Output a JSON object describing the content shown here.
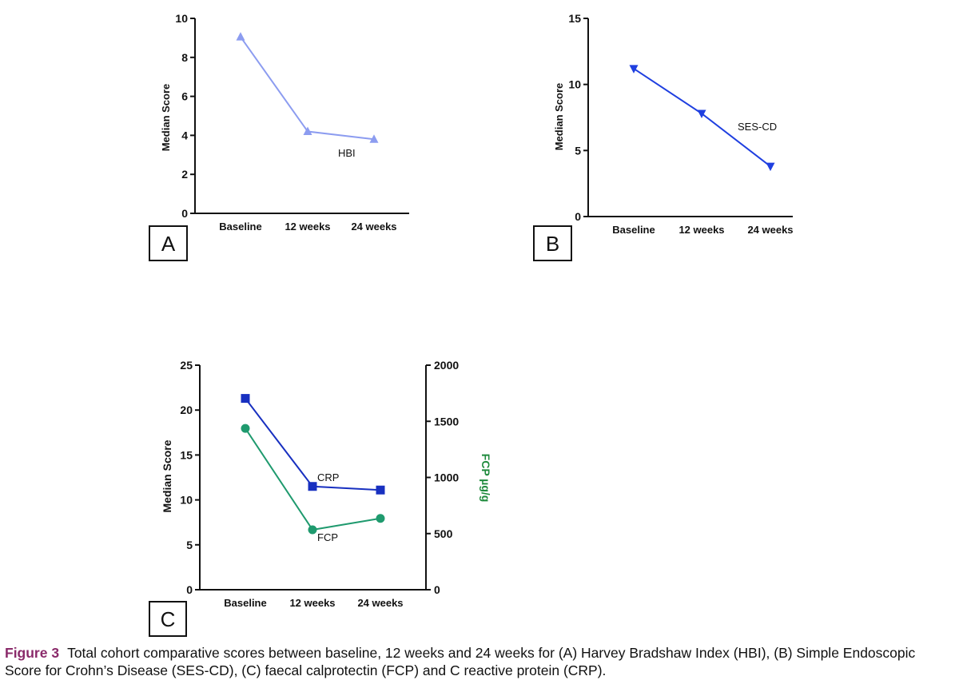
{
  "panel_labels": {
    "a": "A",
    "b": "B",
    "c": "C"
  },
  "chart_data": [
    {
      "type": "line",
      "panel": "A",
      "ylabel": "Median Score",
      "categories": [
        "Baseline",
        "12 weeks",
        "24 weeks"
      ],
      "ylim": [
        0,
        10
      ],
      "yticks": [
        0,
        2,
        4,
        6,
        8,
        10
      ],
      "series": [
        {
          "name": "HBI",
          "values": [
            9.05,
            4.2,
            3.8
          ],
          "color": "#8c9cf0",
          "marker": "triangle-up"
        }
      ]
    },
    {
      "type": "line",
      "panel": "B",
      "ylabel": "Median Score",
      "categories": [
        "Baseline",
        "12 weeks",
        "24 weeks"
      ],
      "ylim": [
        0,
        15
      ],
      "yticks": [
        0,
        5,
        10,
        15
      ],
      "series": [
        {
          "name": "SES-CD",
          "values": [
            11.2,
            7.8,
            3.8
          ],
          "color": "#1f3fe0",
          "marker": "triangle-down"
        }
      ]
    },
    {
      "type": "line",
      "panel": "C",
      "ylabel": "Median Score",
      "y2label": "FCP µg/g",
      "y2color": "#1e8a3c",
      "categories": [
        "Baseline",
        "12 weeks",
        "24 weeks"
      ],
      "ylim": [
        0,
        25
      ],
      "yticks": [
        0,
        5,
        10,
        15,
        20,
        25
      ],
      "y2lim": [
        0,
        2000
      ],
      "y2ticks": [
        0,
        500,
        1000,
        1500,
        2000
      ],
      "series": [
        {
          "name": "CRP",
          "values": [
            21.3,
            11.5,
            11.1
          ],
          "axis": "left",
          "color": "#1830c0",
          "marker": "square"
        },
        {
          "name": "FCP",
          "values": [
            1437,
            534,
            635
          ],
          "axis": "right",
          "color": "#1f9a6e",
          "marker": "circle"
        }
      ]
    }
  ],
  "caption": {
    "label": "Figure 3",
    "text": "Total cohort comparative scores between baseline, 12 weeks and 24 weeks for (A) Harvey Bradshaw Index (HBI), (B) Simple Endoscopic Score for Crohn’s Disease (SES-CD), (C) faecal calprotectin (FCP) and C reactive protein (CRP)."
  }
}
